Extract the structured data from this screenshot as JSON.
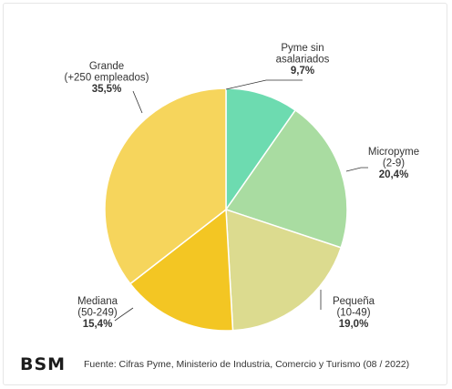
{
  "chart_data": {
    "type": "pie",
    "start_angle_deg": 0,
    "direction": "clockwise",
    "slices": [
      {
        "label_lines": [
          "Pyme sin",
          "asalariados"
        ],
        "value_label": "9,7%",
        "value": 9.7,
        "color": "#6ddbb0",
        "label_side": "right"
      },
      {
        "label_lines": [
          "Micropyme",
          "(2-9)"
        ],
        "value_label": "20,4%",
        "value": 20.4,
        "color": "#a9dca1",
        "label_side": "right"
      },
      {
        "label_lines": [
          "Pequeña",
          "(10-49)"
        ],
        "value_label": "19,0%",
        "value": 19.0,
        "color": "#dcdb8f",
        "label_side": "right"
      },
      {
        "label_lines": [
          "Mediana",
          "(50-249)"
        ],
        "value_label": "15,4%",
        "value": 15.4,
        "color": "#f3c623",
        "label_side": "left"
      },
      {
        "label_lines": [
          "Grande",
          "(+250 empleados)"
        ],
        "value_label": "35,5%",
        "value": 35.5,
        "color": "#f6d55c",
        "label_side": "left"
      }
    ]
  },
  "footer": {
    "logo_text": "BSM",
    "source": "Fuente: Cifras Pyme, Ministerio de Industria, Comercio y Turismo (08 / 2022)"
  }
}
